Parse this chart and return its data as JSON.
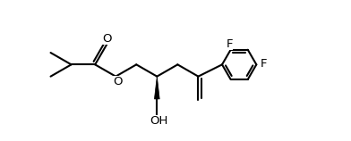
{
  "background_color": "#ffffff",
  "line_color": "#000000",
  "line_width": 1.5,
  "font_size_label": 9.5,
  "fig_width": 3.92,
  "fig_height": 1.58,
  "dpi": 100,
  "xlim": [
    0,
    13.5
  ],
  "ylim": [
    3.0,
    10.0
  ]
}
